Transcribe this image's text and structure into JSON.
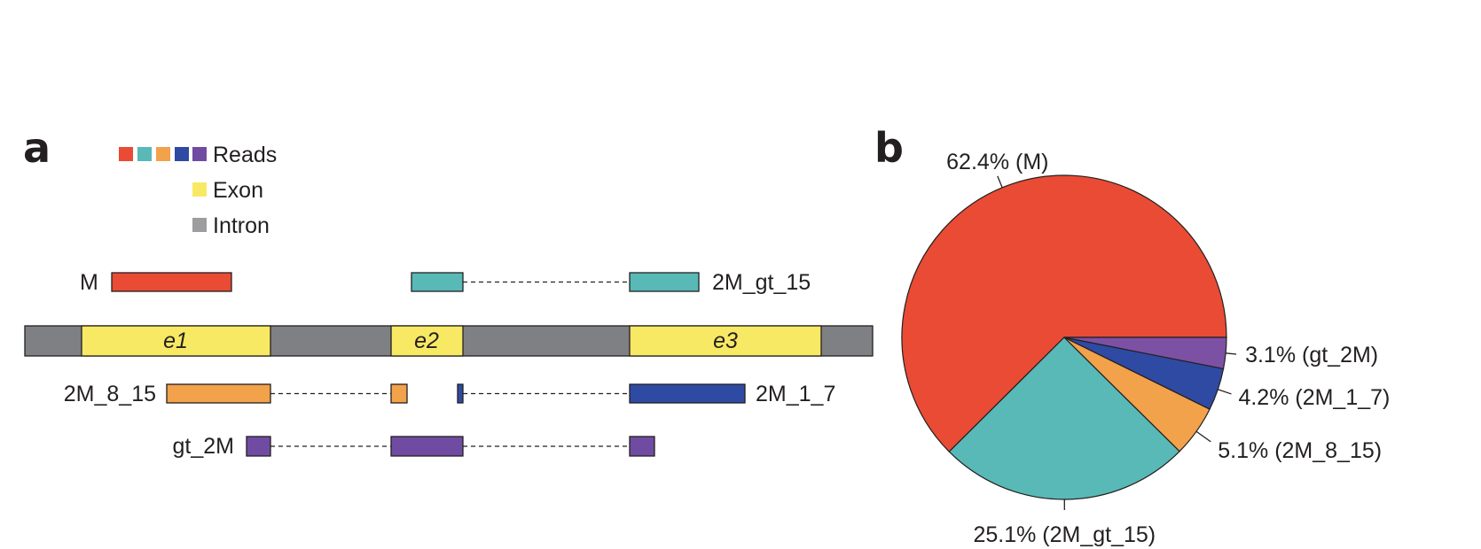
{
  "panel_a": {
    "label": "a",
    "legend": {
      "reads_label": "Reads",
      "exon_label": "Exon",
      "intron_label": "Intron",
      "read_swatch_colors": [
        "#e94b35",
        "#58b9b7",
        "#f2a24a",
        "#2e4aa3",
        "#6f4ca2"
      ],
      "exon_color": "#f8e964",
      "intron_color": "#9d9d9f"
    },
    "gene": {
      "intron_color": "#7f8083",
      "exon_color": "#f8e964",
      "exons": [
        "e1",
        "e2",
        "e3"
      ]
    },
    "read_labels": {
      "m": "M",
      "two_m_gt_15": "2M_gt_15",
      "two_m_8_15": "2M_8_15",
      "two_m_1_7": "2M_1_7",
      "gt_2m": "gt_2M"
    }
  },
  "panel_b": {
    "label": "b"
  },
  "chart_data": {
    "type": "pie",
    "title": "",
    "slices": [
      {
        "category": "M",
        "value": 62.4,
        "label": "62.4% (M)",
        "color": "#e94b35"
      },
      {
        "category": "2M_gt_15",
        "value": 25.1,
        "label": "25.1% (2M_gt_15)",
        "color": "#58b9b7"
      },
      {
        "category": "2M_8_15",
        "value": 5.1,
        "label": "5.1% (2M_8_15)",
        "color": "#f2a24a"
      },
      {
        "category": "2M_1_7",
        "value": 4.2,
        "label": "4.2% (2M_1_7)",
        "color": "#2e4aa3"
      },
      {
        "category": "gt_2M",
        "value": 3.1,
        "label": "3.1% (gt_2M)",
        "color": "#7c51a4"
      }
    ],
    "legend": "none"
  }
}
